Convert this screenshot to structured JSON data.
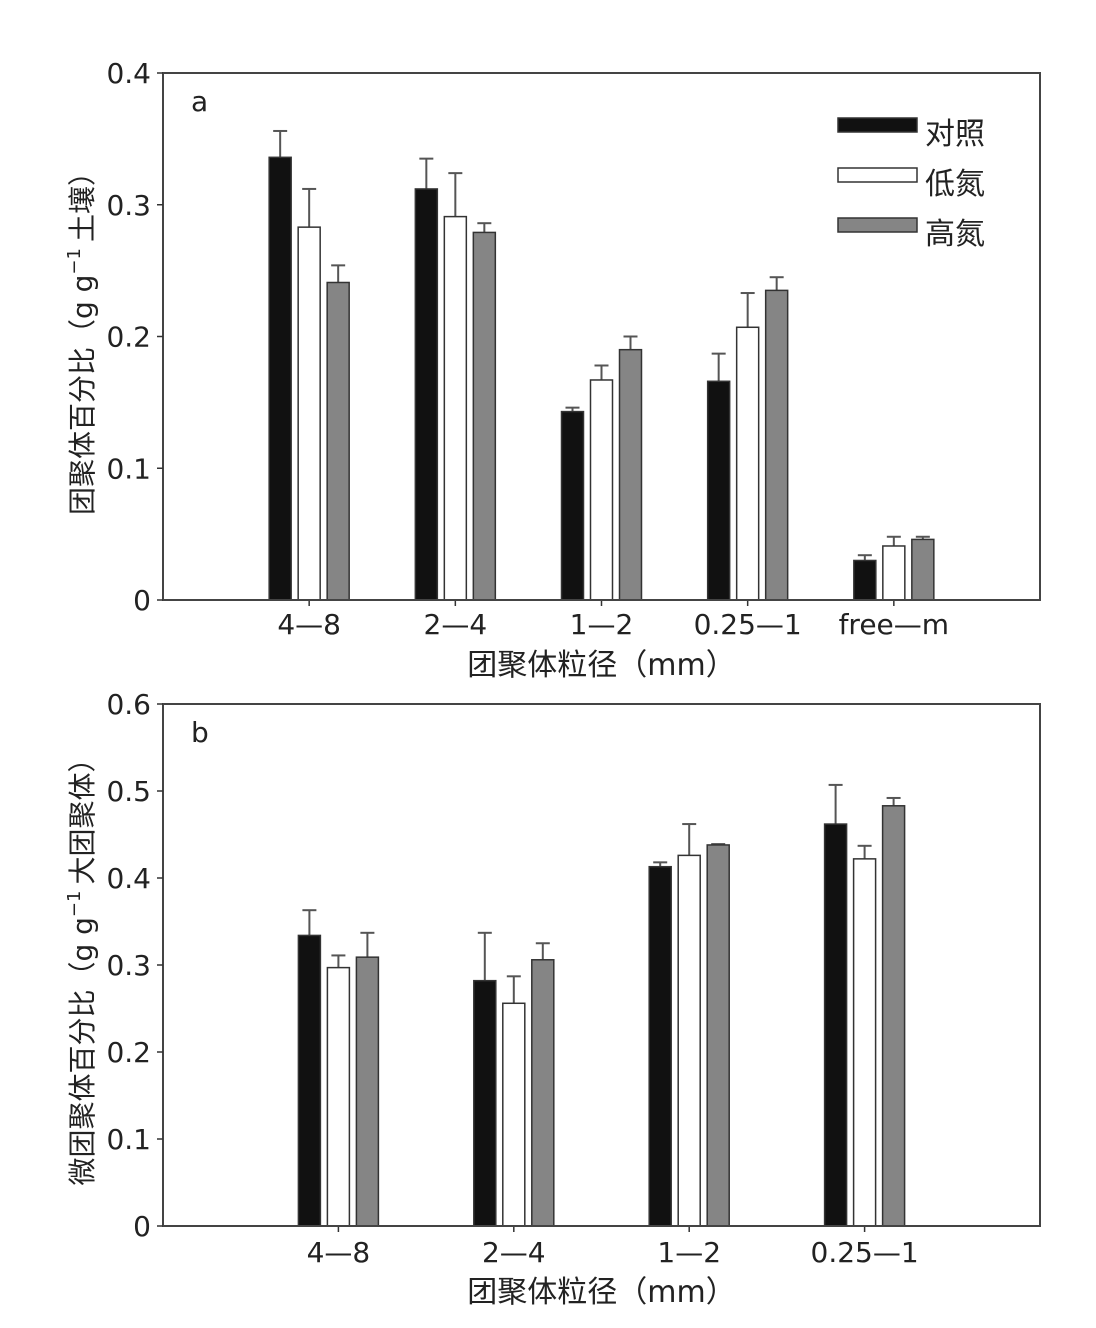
{
  "chart_data": [
    {
      "type": "bar",
      "panel_label": "a",
      "title": "",
      "xlabel": "团聚体粒径（mm）",
      "ylabel": "团聚体百分比（g g⁻¹ 土壤）",
      "ylabel_parts": [
        "团聚体百分比（g g",
        "−1",
        "土壤）"
      ],
      "ylim": [
        0,
        0.4
      ],
      "yticks": [
        "0",
        "0.1",
        "0.2",
        "0.3",
        "0.4"
      ],
      "ytick_values": [
        0,
        0.1,
        0.2,
        0.3,
        0.4
      ],
      "categories": [
        "4—8",
        "2—4",
        "1—2",
        "0.25—1",
        "free—m"
      ],
      "series": [
        {
          "name": "对照",
          "color": "#111111",
          "values": [
            0.336,
            0.312,
            0.143,
            0.166,
            0.03
          ],
          "errors": [
            0.02,
            0.023,
            0.003,
            0.021,
            0.004
          ]
        },
        {
          "name": "低氮",
          "color": "#ffffff",
          "values": [
            0.283,
            0.291,
            0.167,
            0.207,
            0.041
          ],
          "errors": [
            0.029,
            0.033,
            0.011,
            0.026,
            0.007
          ]
        },
        {
          "name": "高氮",
          "color": "#858585",
          "values": [
            0.241,
            0.279,
            0.19,
            0.235,
            0.046
          ],
          "errors": [
            0.013,
            0.007,
            0.01,
            0.01,
            0.002
          ]
        }
      ],
      "legend": "top-right"
    },
    {
      "type": "bar",
      "panel_label": "b",
      "title": "",
      "xlabel": "团聚体粒径（mm）",
      "ylabel": "微团聚体百分比（g g⁻¹ 大团聚体）",
      "ylabel_parts": [
        "微团聚体百分比（g g",
        "−1",
        "大团聚体）"
      ],
      "ylim": [
        0,
        0.6
      ],
      "yticks": [
        "0",
        "0.1",
        "0.2",
        "0.3",
        "0.4",
        "0.5",
        "0.6"
      ],
      "ytick_values": [
        0,
        0.1,
        0.2,
        0.3,
        0.4,
        0.5,
        0.6
      ],
      "categories": [
        "4—8",
        "2—4",
        "1—2",
        "0.25—1"
      ],
      "series": [
        {
          "name": "对照",
          "color": "#111111",
          "values": [
            0.334,
            0.282,
            0.413,
            0.462
          ],
          "errors": [
            0.029,
            0.055,
            0.005,
            0.045
          ]
        },
        {
          "name": "低氮",
          "color": "#ffffff",
          "values": [
            0.297,
            0.256,
            0.426,
            0.422
          ],
          "errors": [
            0.014,
            0.031,
            0.036,
            0.015
          ]
        },
        {
          "name": "高氮",
          "color": "#858585",
          "values": [
            0.309,
            0.306,
            0.438,
            0.483
          ],
          "errors": [
            0.028,
            0.019,
            0.001,
            0.009
          ]
        }
      ]
    }
  ]
}
